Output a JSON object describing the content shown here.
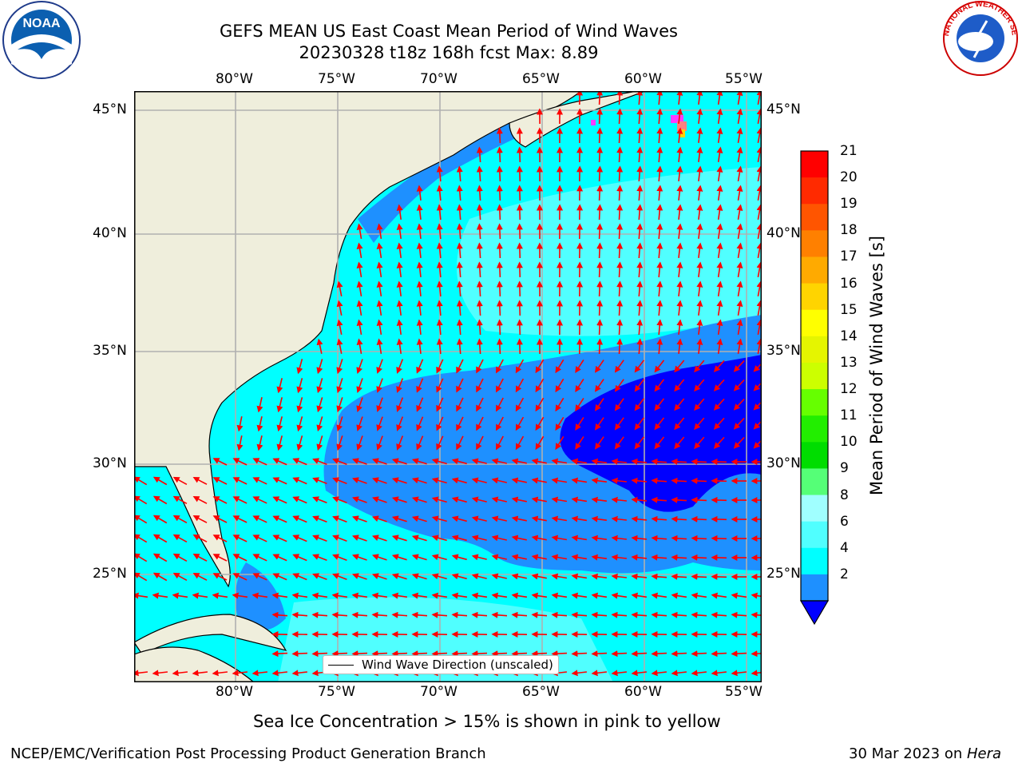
{
  "title": {
    "line1": "GEFS MEAN US East Coast Mean Period of Wind Waves",
    "line2": "20230328 t18z 168h fcst   Max: 8.89"
  },
  "map": {
    "lon_labels": [
      "80°W",
      "75°W",
      "70°W",
      "65°W",
      "60°W",
      "55°W"
    ],
    "lat_labels": [
      "45°N",
      "40°N",
      "35°N",
      "30°N",
      "25°N"
    ],
    "legend_label": "Wind Wave Direction (unscaled)",
    "colors": {
      "land": "#efeedc",
      "cyan": "#00ffff",
      "light_cyan": "#50ffff",
      "mid_blue": "#1e90ff",
      "blue": "#0000ff",
      "arrow": "#ff0000",
      "ice": "#ff3cff"
    }
  },
  "colorbar": {
    "label": "Mean Period of Wind Waves [s]",
    "ticks": [
      "21",
      "20",
      "19",
      "18",
      "17",
      "16",
      "15",
      "14",
      "13",
      "12",
      "11",
      "10",
      "9",
      "8",
      "6",
      "4",
      "2"
    ],
    "colors": [
      "#ff0000",
      "#ff2a00",
      "#ff5500",
      "#ff8000",
      "#ffaa00",
      "#ffd400",
      "#ffff00",
      "#e5f500",
      "#ccff00",
      "#66ff00",
      "#22ee00",
      "#00dd00",
      "#55ff77",
      "#a0ffff",
      "#50ffff",
      "#00ffff",
      "#1e90ff"
    ]
  },
  "ice_note": "Sea Ice Concentration > 15% is shown in pink to yellow",
  "footer": {
    "left": "NCEP/EMC/Verification Post Processing Product Generation Branch",
    "right_date": "30 Mar 2023 on ",
    "right_machine": "Hera"
  },
  "logos": {
    "left": "NOAA",
    "right": "NATIONAL WEATHER SERVICE"
  }
}
